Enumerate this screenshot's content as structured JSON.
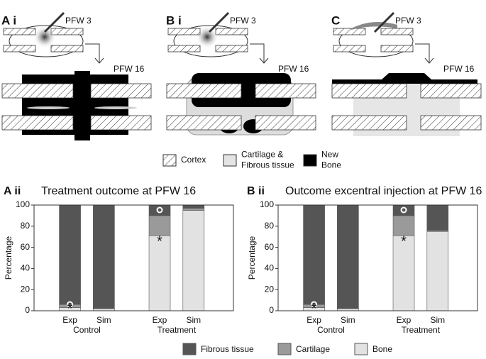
{
  "diagram": {
    "panels": [
      {
        "label": "A i",
        "early": "PFW 3",
        "late": "PFW 16"
      },
      {
        "label": "B i",
        "early": "PFW 3",
        "late": "PFW 16"
      },
      {
        "label": "C",
        "early": "PFW 3",
        "late": "PFW 16"
      }
    ],
    "legend": [
      {
        "lines": [
          "Cortex"
        ]
      },
      {
        "lines": [
          "Cartilage &",
          "Fibrous tissue"
        ]
      },
      {
        "lines": [
          "New",
          "Bone"
        ]
      }
    ]
  },
  "chart_data": [
    {
      "type": "bar",
      "stacked": true,
      "panel": "A ii",
      "title": "Treatment outcome at PFW 16",
      "y_label": "Percentage",
      "categories": [
        "Exp",
        "Sim",
        "Exp",
        "Sim"
      ],
      "groups": [
        "Control",
        "Treatment"
      ],
      "series": [
        {
          "name": "Bone",
          "color": "#e2e2e2",
          "values": [
            3,
            2,
            71,
            95
          ]
        },
        {
          "name": "Cartilage",
          "color": "#9a9a9a",
          "values": [
            3,
            0,
            19,
            2
          ]
        },
        {
          "name": "Fibrous tissue",
          "color": "#555555",
          "values": [
            94,
            98,
            10,
            3
          ]
        }
      ],
      "annotations": [
        "*",
        "*"
      ],
      "ylim": [
        0,
        100
      ],
      "yticks": [
        0,
        20,
        40,
        60,
        80,
        100
      ]
    },
    {
      "type": "bar",
      "stacked": true,
      "panel": "B ii",
      "title": "Outcome excentral injection at PFW 16",
      "y_label": "Percentage",
      "categories": [
        "Exp",
        "Sim",
        "Exp",
        "Sim"
      ],
      "groups": [
        "Control",
        "Treatment"
      ],
      "series": [
        {
          "name": "Bone",
          "color": "#e2e2e2",
          "values": [
            3,
            2,
            71,
            75
          ]
        },
        {
          "name": "Cartilage",
          "color": "#9a9a9a",
          "values": [
            3,
            0,
            19,
            1
          ]
        },
        {
          "name": "Fibrous tissue",
          "color": "#555555",
          "values": [
            94,
            98,
            10,
            24
          ]
        }
      ],
      "annotations": [
        "*",
        "*"
      ],
      "ylim": [
        0,
        100
      ],
      "yticks": [
        0,
        20,
        40,
        60,
        80,
        100
      ]
    }
  ]
}
